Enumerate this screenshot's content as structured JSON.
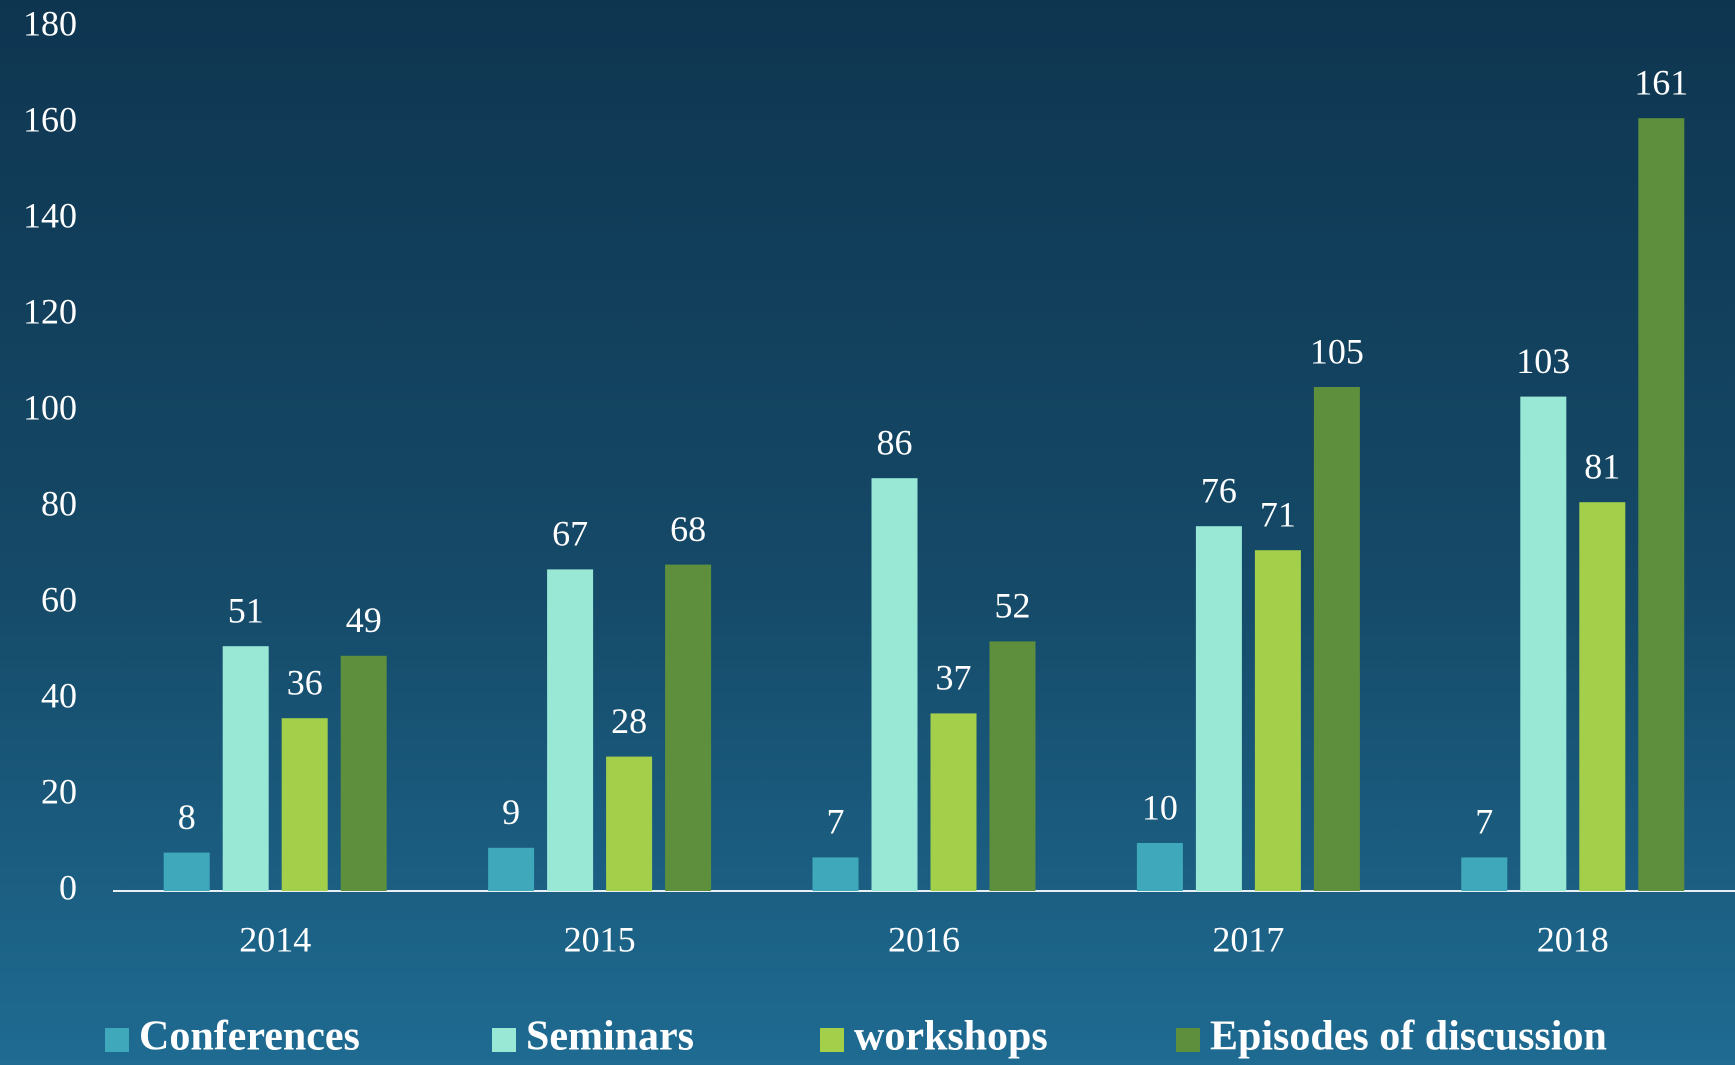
{
  "chart_data": {
    "type": "bar",
    "categories": [
      "2014",
      "2015",
      "2016",
      "2017",
      "2018"
    ],
    "series": [
      {
        "name": "Conferences",
        "color": "#3fa9bb",
        "values": [
          8,
          9,
          7,
          10,
          7
        ]
      },
      {
        "name": "Seminars",
        "color": "#99e8d6",
        "values": [
          51,
          67,
          86,
          76,
          103
        ]
      },
      {
        "name": "workshops",
        "color": "#a3cf4a",
        "values": [
          36,
          28,
          37,
          71,
          81
        ]
      },
      {
        "name": "Episodes of discussion",
        "color": "#5e8f3c",
        "values": [
          49,
          68,
          52,
          105,
          161
        ]
      }
    ],
    "ylim": [
      0,
      180
    ],
    "yticks": [
      0,
      20,
      40,
      60,
      80,
      100,
      120,
      140,
      160,
      180
    ],
    "grid": false,
    "legend": "bottom"
  }
}
